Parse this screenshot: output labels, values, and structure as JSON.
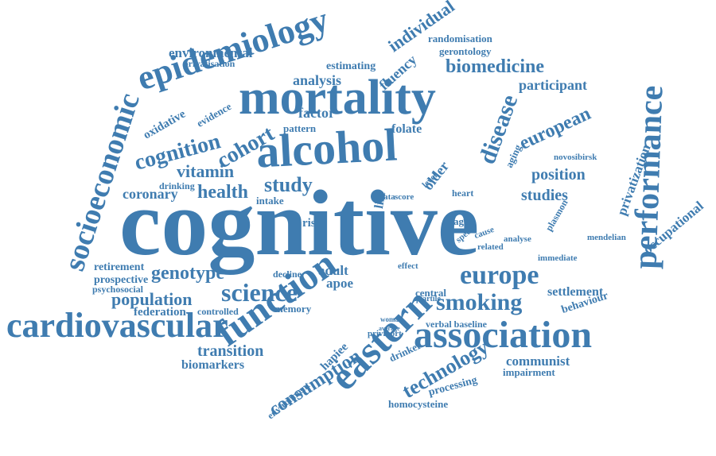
{
  "cloud": {
    "color": "#3f7cb0",
    "words": [
      "cognitive",
      "mortality",
      "alcohol",
      "epidemiology",
      "eastern",
      "function",
      "association",
      "cardiovascular",
      "performance",
      "socioeconomic",
      "europe",
      "smoking",
      "science",
      "disease",
      "cognition",
      "biomedicine",
      "population",
      "genotype",
      "european",
      "studies",
      "study",
      "health",
      "cohort",
      "vitamin",
      "position",
      "consumption",
      "technology",
      "individual",
      "participant",
      "analysis",
      "transition",
      "coronary",
      "environmental",
      "privatization",
      "fluency",
      "older",
      "occupational",
      "communist",
      "biomarkers",
      "retirement",
      "federation",
      "adult",
      "settlement",
      "apoe",
      "central",
      "gerontology",
      "randomisation",
      "prospective",
      "privatisation",
      "estimating",
      "oxidative",
      "evidence",
      "factor",
      "folate",
      "memory",
      "controlled",
      "environment",
      "processing",
      "homocysteine",
      "impairment",
      "behaviour",
      "drinker",
      "verbal baseline",
      "decline",
      "psychosocial",
      "novosibirsk",
      "mendelian",
      "immediate",
      "plasmon",
      "aging",
      "pattern",
      "intake",
      "risk",
      "hapiee",
      "drinking",
      "life",
      "aged",
      "related",
      "cause",
      "analyse",
      "heart",
      "data",
      "score",
      "level",
      "speed",
      "woman",
      "average",
      "effect",
      "quartile",
      "privmort"
    ]
  }
}
